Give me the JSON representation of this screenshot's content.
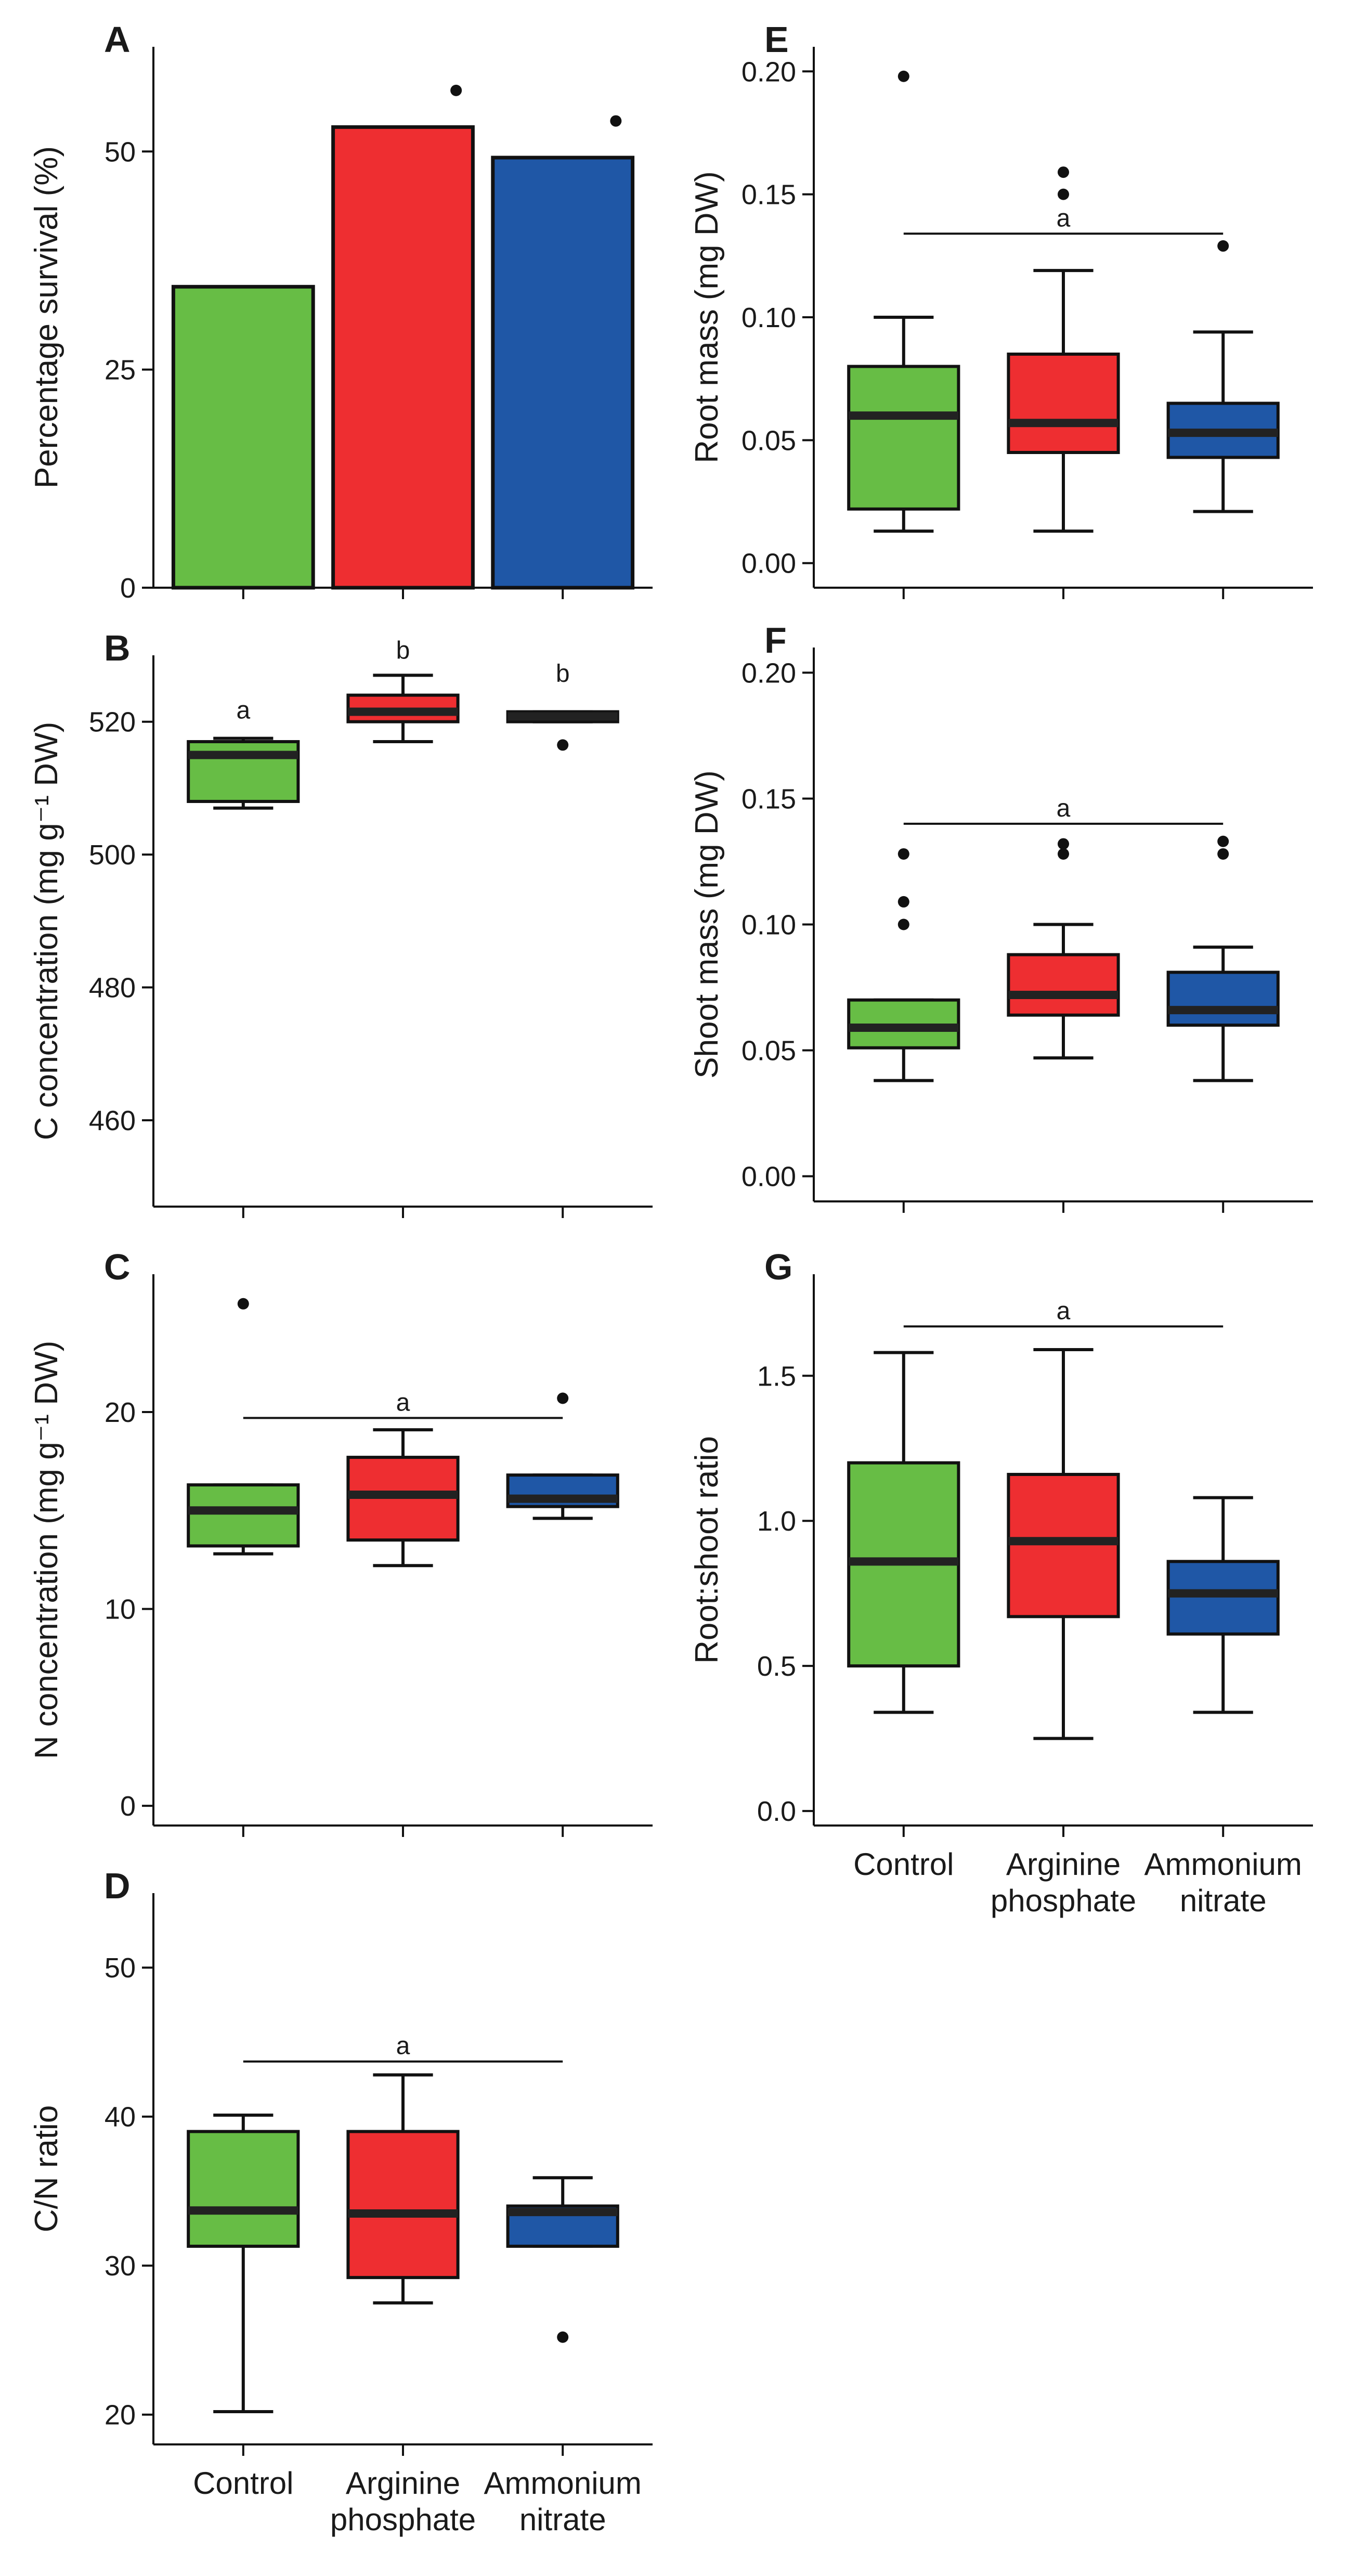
{
  "figure": {
    "category_labels": [
      [
        "Control"
      ],
      [
        "Arginine",
        "phosphate"
      ],
      [
        "Ammonium",
        "nitrate"
      ]
    ],
    "colors": {
      "control": "#67bd45",
      "arginine": "#ee2e31",
      "ammonium": "#1f57a6",
      "median": "#222222",
      "axis": "#111111"
    }
  },
  "chart_data": [
    {
      "panel": "A",
      "type": "bar",
      "ylabel": "Percentage survival (%)",
      "ylim": [
        0,
        62
      ],
      "yticks": [
        0,
        25,
        50
      ],
      "categories": [
        "Control",
        "Arginine phosphate",
        "Ammonium nitrate"
      ],
      "values": [
        34.5,
        52.8,
        49.3
      ],
      "outliers": [
        [],
        [
          57.0
        ],
        [
          53.5
        ]
      ],
      "show_x_labels": false
    },
    {
      "panel": "B",
      "type": "box",
      "ylabel": "C concentration (mg g⁻¹ DW)",
      "ylim": [
        447,
        530
      ],
      "yticks": [
        460,
        480,
        500,
        520
      ],
      "categories": [
        "Control",
        "Arginine phosphate",
        "Ammonium nitrate"
      ],
      "boxes": [
        {
          "min": 507.0,
          "q1": 508.0,
          "median": 515.0,
          "q3": 517.0,
          "max": 517.5,
          "outliers": []
        },
        {
          "min": 517.0,
          "q1": 520.0,
          "median": 521.5,
          "q3": 524.0,
          "max": 527.0,
          "outliers": []
        },
        {
          "min": 520.0,
          "q1": 520.0,
          "median": 520.8,
          "q3": 521.5,
          "max": 521.5,
          "outliers": [
            516.5
          ]
        }
      ],
      "letters": [
        "a",
        "b",
        "b"
      ],
      "letter_y": [
        520.5,
        529.5,
        526.0
      ],
      "show_x_labels": false
    },
    {
      "panel": "C",
      "type": "box",
      "ylabel": "N concentration (mg g⁻¹ DW)",
      "ylim": [
        -1,
        27
      ],
      "yticks": [
        0,
        10,
        20
      ],
      "categories": [
        "Control",
        "Arginine phosphate",
        "Ammonium nitrate"
      ],
      "boxes": [
        {
          "min": 12.8,
          "q1": 13.2,
          "median": 15.0,
          "q3": 16.3,
          "max": 16.3,
          "outliers": [
            25.5
          ]
        },
        {
          "min": 12.2,
          "q1": 13.5,
          "median": 15.8,
          "q3": 17.7,
          "max": 19.1,
          "outliers": []
        },
        {
          "min": 14.6,
          "q1": 15.2,
          "median": 15.6,
          "q3": 16.8,
          "max": 16.8,
          "outliers": [
            20.7
          ]
        }
      ],
      "bracket": {
        "y": 19.7,
        "label": "a"
      },
      "show_x_labels": false
    },
    {
      "panel": "D",
      "type": "box",
      "ylabel": "C/N ratio",
      "ylim": [
        18,
        55
      ],
      "yticks": [
        20,
        30,
        40,
        50
      ],
      "categories": [
        "Control",
        "Arginine phosphate",
        "Ammonium nitrate"
      ],
      "boxes": [
        {
          "min": 20.2,
          "q1": 31.3,
          "median": 33.7,
          "q3": 39.0,
          "max": 40.1,
          "outliers": []
        },
        {
          "min": 27.5,
          "q1": 29.2,
          "median": 33.5,
          "q3": 39.0,
          "max": 42.8,
          "outliers": []
        },
        {
          "min": 31.3,
          "q1": 31.3,
          "median": 33.6,
          "q3": 34.0,
          "max": 35.9,
          "outliers": [
            25.2
          ]
        }
      ],
      "bracket": {
        "y": 43.7,
        "label": "a"
      },
      "show_x_labels": true
    },
    {
      "panel": "E",
      "type": "box",
      "ylabel": "Root mass (mg DW)",
      "ylim": [
        -0.01,
        0.21
      ],
      "yticks": [
        0.0,
        0.05,
        0.1,
        0.15,
        0.2
      ],
      "categories": [
        "Control",
        "Arginine phosphate",
        "Ammonium nitrate"
      ],
      "boxes": [
        {
          "min": 0.013,
          "q1": 0.022,
          "median": 0.06,
          "q3": 0.08,
          "max": 0.1,
          "outliers": [
            0.198
          ]
        },
        {
          "min": 0.013,
          "q1": 0.045,
          "median": 0.057,
          "q3": 0.085,
          "max": 0.119,
          "outliers": [
            0.15,
            0.159
          ]
        },
        {
          "min": 0.021,
          "q1": 0.043,
          "median": 0.053,
          "q3": 0.065,
          "max": 0.094,
          "outliers": [
            0.129
          ]
        }
      ],
      "bracket": {
        "y": 0.134,
        "label": "a"
      },
      "show_x_labels": false
    },
    {
      "panel": "F",
      "type": "box",
      "ylabel": "Shoot mass (mg DW)",
      "ylim": [
        -0.01,
        0.21
      ],
      "yticks": [
        0.0,
        0.05,
        0.1,
        0.15,
        0.2
      ],
      "categories": [
        "Control",
        "Arginine phosphate",
        "Ammonium nitrate"
      ],
      "boxes": [
        {
          "min": 0.038,
          "q1": 0.051,
          "median": 0.059,
          "q3": 0.07,
          "max": 0.07,
          "outliers": [
            0.1,
            0.109,
            0.128
          ]
        },
        {
          "min": 0.047,
          "q1": 0.064,
          "median": 0.072,
          "q3": 0.088,
          "max": 0.1,
          "outliers": [
            0.128,
            0.132
          ]
        },
        {
          "min": 0.038,
          "q1": 0.06,
          "median": 0.066,
          "q3": 0.081,
          "max": 0.091,
          "outliers": [
            0.128,
            0.133
          ]
        }
      ],
      "bracket": {
        "y": 0.14,
        "label": "a"
      },
      "show_x_labels": false
    },
    {
      "panel": "G",
      "type": "box",
      "ylabel": "Root:shoot ratio",
      "ylim": [
        -0.05,
        1.85
      ],
      "yticks": [
        0.0,
        0.5,
        1.0,
        1.5
      ],
      "categories": [
        "Control",
        "Arginine phosphate",
        "Ammonium nitrate"
      ],
      "boxes": [
        {
          "min": 0.34,
          "q1": 0.5,
          "median": 0.86,
          "q3": 1.2,
          "max": 1.58,
          "outliers": []
        },
        {
          "min": 0.25,
          "q1": 0.67,
          "median": 0.93,
          "q3": 1.16,
          "max": 1.59,
          "outliers": []
        },
        {
          "min": 0.34,
          "q1": 0.61,
          "median": 0.75,
          "q3": 0.86,
          "max": 1.08,
          "outliers": []
        }
      ],
      "bracket": {
        "y": 1.67,
        "label": "a"
      },
      "show_x_labels": true
    }
  ]
}
